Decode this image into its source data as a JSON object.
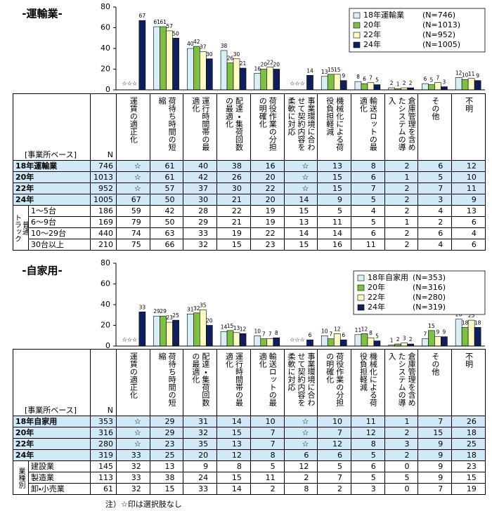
{
  "chart_data": [
    {
      "type": "bar",
      "title": "-運輸業-",
      "categories": [
        "運賃の適正化",
        "荷待ち時間の短縮",
        "運行時間帯の最適化",
        "配達・集荷回数の最適化",
        "荷役作業の分担の明確化",
        "事業環境に合わせて契約内容を柔軟に対応",
        "機械化による荷役負担軽減",
        "輸送ロットの最適化",
        "倉庫管理を含めたシステムの導入",
        "その他",
        "不明"
      ],
      "series": [
        {
          "name": "18年運輸業",
          "legend_n": "(N=746)",
          "color": "#d9eef9",
          "values": [
            null,
            61,
            40,
            38,
            16,
            null,
            13,
            8,
            2,
            6,
            12
          ]
        },
        {
          "name": "20年",
          "legend_n": "(N=1013)",
          "color": "#7dc142",
          "values": [
            null,
            61,
            42,
            26,
            20,
            null,
            15,
            6,
            1,
            5,
            10
          ]
        },
        {
          "name": "22年",
          "legend_n": "(N=952)",
          "color": "#fffcc4",
          "values": [
            null,
            57,
            37,
            30,
            22,
            null,
            15,
            7,
            2,
            7,
            11
          ]
        },
        {
          "name": "24年",
          "legend_n": "(N=1005)",
          "color": "#0f1f5c",
          "values": [
            67,
            50,
            30,
            21,
            20,
            14,
            9,
            5,
            2,
            3,
            9
          ]
        }
      ],
      "na_label": "☆☆☆",
      "ylim": [
        0,
        80
      ],
      "yticks": [
        0,
        20,
        40,
        60,
        80
      ],
      "legend": "upper right"
    },
    {
      "type": "bar",
      "title": "-自家用-",
      "categories": [
        "運賃の適正化",
        "荷待ち時間の短縮",
        "配達・集荷回数の最適化",
        "運行時間帯の最適化",
        "輸送ロットの最適化",
        "事業環境に合わせて契約内容を柔軟に対応",
        "荷役作業の分担の明確化",
        "機械化による荷役負担軽減",
        "倉庫管理を含めたシステムの導入",
        "その他",
        "不明"
      ],
      "series": [
        {
          "name": "18年自家用",
          "legend_n": "(N=353)",
          "color": "#d9eef9",
          "values": [
            null,
            29,
            31,
            14,
            10,
            null,
            10,
            11,
            1,
            7,
            26
          ]
        },
        {
          "name": "20年",
          "legend_n": "(N=316)",
          "color": "#7dc142",
          "values": [
            null,
            29,
            32,
            15,
            7,
            null,
            7,
            12,
            2,
            15,
            18
          ]
        },
        {
          "name": "22年",
          "legend_n": "(N=280)",
          "color": "#fffcc4",
          "values": [
            null,
            23,
            35,
            13,
            7,
            null,
            12,
            8,
            3,
            9,
            25
          ]
        },
        {
          "name": "24年",
          "legend_n": "(N=319)",
          "color": "#0f1f5c",
          "values": [
            33,
            25,
            20,
            12,
            8,
            6,
            6,
            5,
            2,
            9,
            18
          ]
        }
      ],
      "na_label": "☆☆☆",
      "ylim": [
        0,
        80
      ],
      "yticks": [
        0,
        20,
        40,
        60,
        80
      ],
      "legend": "upper right"
    }
  ],
  "tables": [
    {
      "corner": "[事業所ベース]",
      "n_header": "N",
      "rows": [
        {
          "label": "18年運輸業",
          "n": 746,
          "cells": [
            "☆",
            61,
            40,
            38,
            16,
            "☆",
            13,
            8,
            2,
            6,
            12
          ]
        },
        {
          "label": "20年",
          "n": 1013,
          "cells": [
            "☆",
            61,
            42,
            26,
            20,
            "☆",
            15,
            6,
            1,
            5,
            10
          ]
        },
        {
          "label": "22年",
          "n": 952,
          "cells": [
            "☆",
            57,
            37,
            30,
            22,
            "☆",
            15,
            7,
            2,
            7,
            11
          ]
        },
        {
          "label": "24年",
          "n": 1005,
          "cells": [
            67,
            50,
            30,
            21,
            20,
            14,
            9,
            5,
            2,
            3,
            9
          ]
        }
      ],
      "group": {
        "label": [
          "普通",
          "トラック"
        ],
        "rows": [
          {
            "label": "1～5台",
            "n": 186,
            "cells": [
              59,
              42,
              28,
              22,
              19,
              15,
              5,
              4,
              2,
              4,
              13
            ]
          },
          {
            "label": "6～9台",
            "n": 169,
            "cells": [
              79,
              50,
              29,
              21,
              19,
              13,
              11,
              5,
              1,
              2,
              6
            ]
          },
          {
            "label": "10～29台",
            "n": 440,
            "cells": [
              74,
              63,
              33,
              19,
              22,
              14,
              14,
              6,
              2,
              6,
              4
            ]
          },
          {
            "label": "30台以上",
            "n": 210,
            "cells": [
              75,
              66,
              32,
              15,
              23,
              15,
              16,
              11,
              2,
              4,
              6
            ]
          }
        ]
      }
    },
    {
      "corner": "[事業所ベース]",
      "n_header": "N",
      "rows": [
        {
          "label": "18年自家用",
          "n": 353,
          "cells": [
            "☆",
            29,
            31,
            14,
            10,
            "☆",
            10,
            11,
            1,
            7,
            26
          ]
        },
        {
          "label": "20年",
          "n": 316,
          "cells": [
            "☆",
            29,
            32,
            15,
            7,
            "☆",
            7,
            12,
            2,
            15,
            18
          ]
        },
        {
          "label": "22年",
          "n": 280,
          "cells": [
            "☆",
            23,
            35,
            13,
            7,
            "☆",
            12,
            8,
            3,
            9,
            25
          ]
        },
        {
          "label": "24年",
          "n": 319,
          "cells": [
            33,
            25,
            20,
            12,
            8,
            6,
            6,
            5,
            2,
            9,
            18
          ]
        }
      ],
      "group": {
        "label": [
          "業種別"
        ],
        "rows": [
          {
            "label": "建設業",
            "n": 145,
            "cells": [
              32,
              13,
              9,
              8,
              5,
              12,
              5,
              6,
              0,
              9,
              23
            ]
          },
          {
            "label": "製造業",
            "n": 113,
            "cells": [
              33,
              38,
              24,
              15,
              11,
              2,
              7,
              5,
              5,
              9,
              15
            ]
          },
          {
            "label": "卸・小売業",
            "n": 61,
            "cells": [
              32,
              15,
              33,
              14,
              2,
              8,
              2,
              3,
              0,
              7,
              19
            ]
          }
        ]
      }
    }
  ],
  "footnote": "注）☆印は選択肢なし"
}
